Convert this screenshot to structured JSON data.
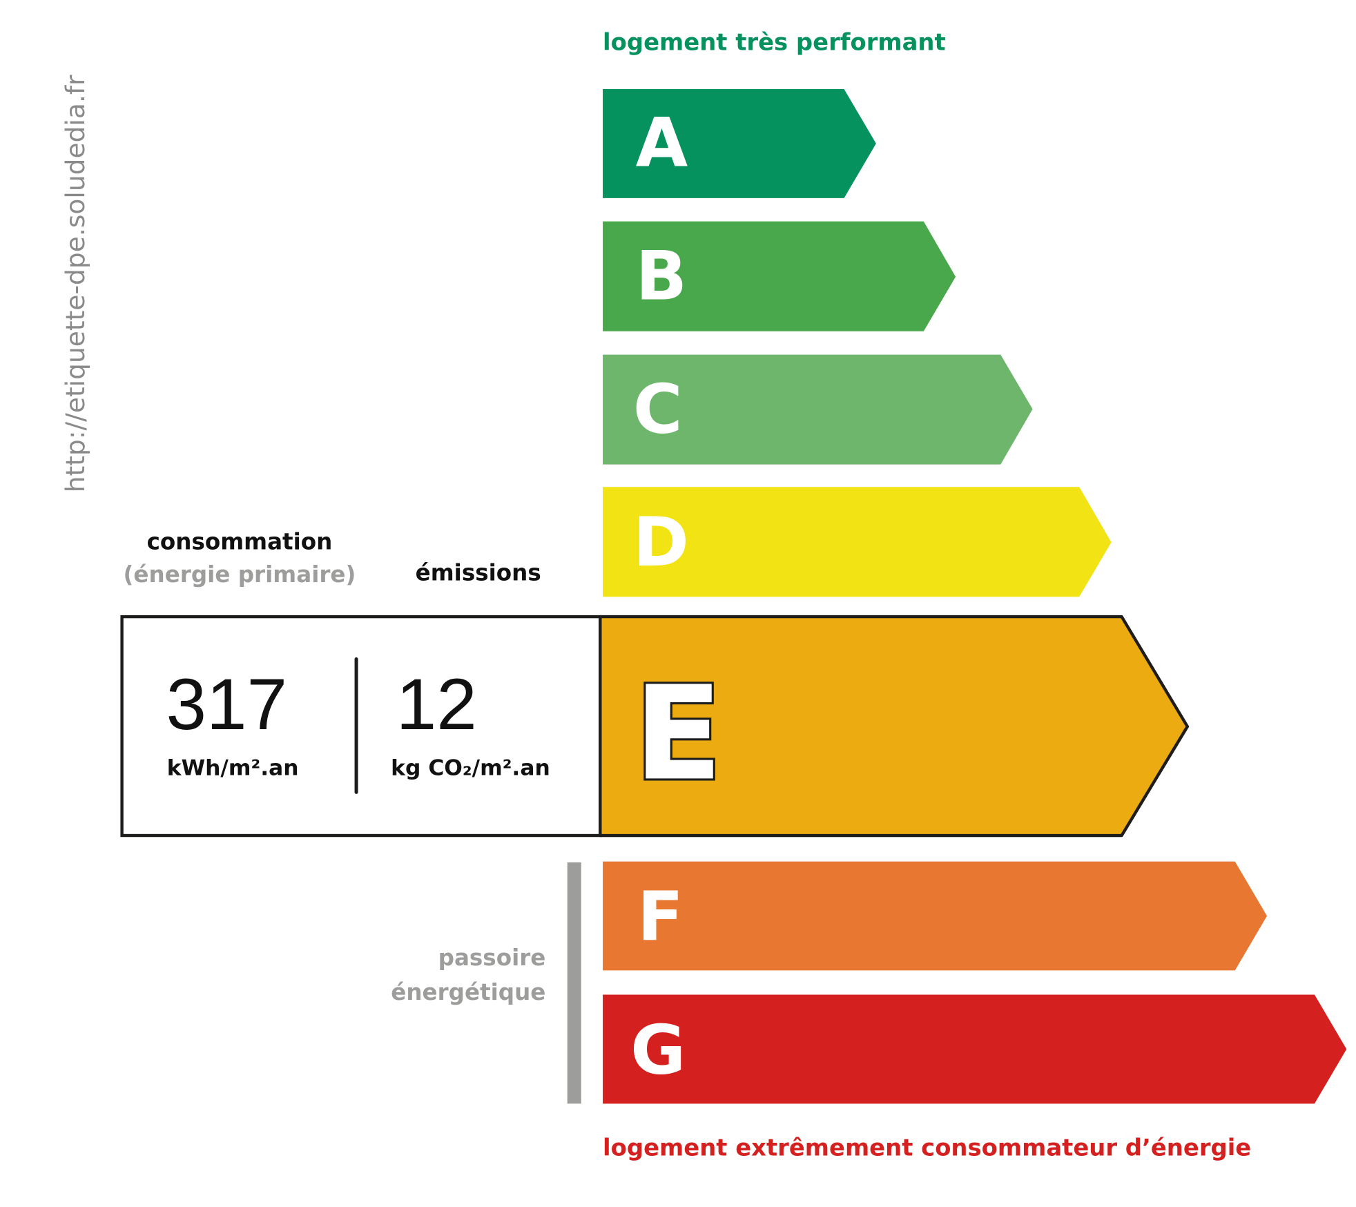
{
  "header": {
    "top_label": "logement très performant",
    "bottom_label": "logement extrêmement consommateur d’énergie"
  },
  "side_url": "http://etiquette-dpe.soludedia.fr",
  "columns": {
    "consumption_title": "consommation",
    "consumption_subtitle": "(énergie primaire)",
    "emissions_title": "émissions"
  },
  "result": {
    "class": "E",
    "consumption_value": "317",
    "consumption_unit": "kWh/m².an",
    "emissions_value": "12",
    "emissions_unit": "kg CO₂/m².an"
  },
  "passoire": {
    "line1": "passoire",
    "line2": "énergétique"
  },
  "classes": [
    {
      "letter": "A",
      "color": "#05925F"
    },
    {
      "letter": "B",
      "color": "#48A84B"
    },
    {
      "letter": "C",
      "color": "#6EB66C"
    },
    {
      "letter": "D",
      "color": "#F1E314"
    },
    {
      "letter": "E",
      "color": "#EBAB11"
    },
    {
      "letter": "F",
      "color": "#E77731"
    },
    {
      "letter": "G",
      "color": "#D42120"
    }
  ]
}
